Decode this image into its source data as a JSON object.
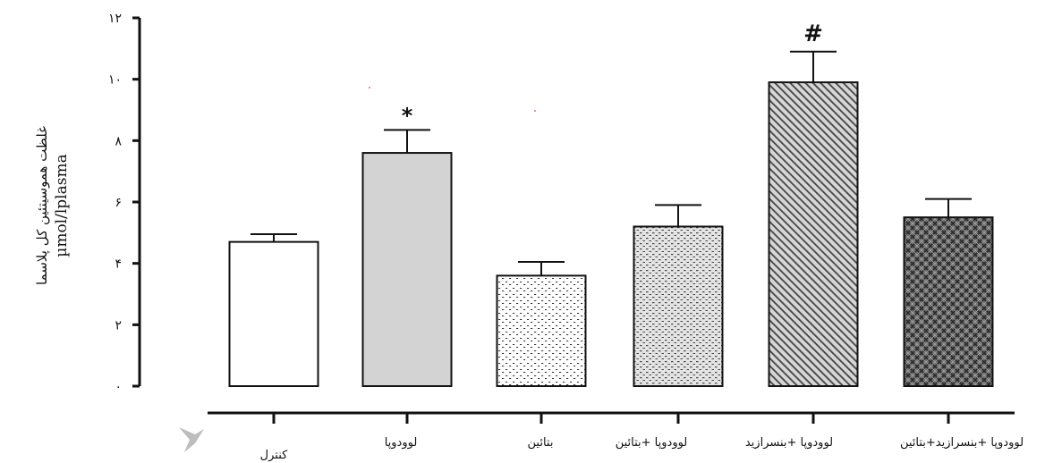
{
  "chart_data": {
    "type": "bar",
    "title": "",
    "ylabel_lines": [
      "غلظت هموسیتئین کل پلاسما",
      "µmol/lplasma"
    ],
    "xlabel": "",
    "ylim": [
      0,
      12
    ],
    "yticks": [
      {
        "value": 0,
        "label": "۰"
      },
      {
        "value": 2,
        "label": "۲"
      },
      {
        "value": 4,
        "label": "۴"
      },
      {
        "value": 6,
        "label": "۶"
      },
      {
        "value": 8,
        "label": "۸"
      },
      {
        "value": 10,
        "label": "۱۰"
      },
      {
        "value": 12,
        "label": "۱۲"
      }
    ],
    "categories": [
      "کنترل",
      "لوودوپا",
      "بتائین",
      "لوودوپا +بتائین",
      "لوودوپا +بنسرازید",
      "لوودوپا +بنسرازید+بتائین"
    ],
    "values": [
      4.7,
      7.6,
      3.6,
      5.2,
      9.9,
      5.5
    ],
    "error": [
      0.25,
      0.75,
      0.45,
      0.7,
      1.0,
      0.6
    ],
    "annotations": [
      "",
      "*",
      "",
      "",
      "#",
      ""
    ],
    "patterns": [
      "white",
      "light-gray",
      "dots",
      "dashes",
      "diagonal",
      "crosshatch"
    ],
    "colors": {
      "axis": "#111111",
      "bar_stroke": "#111111",
      "solid_gray": "#d3d3d3",
      "dark_hatch": "#6e6e6e"
    }
  }
}
